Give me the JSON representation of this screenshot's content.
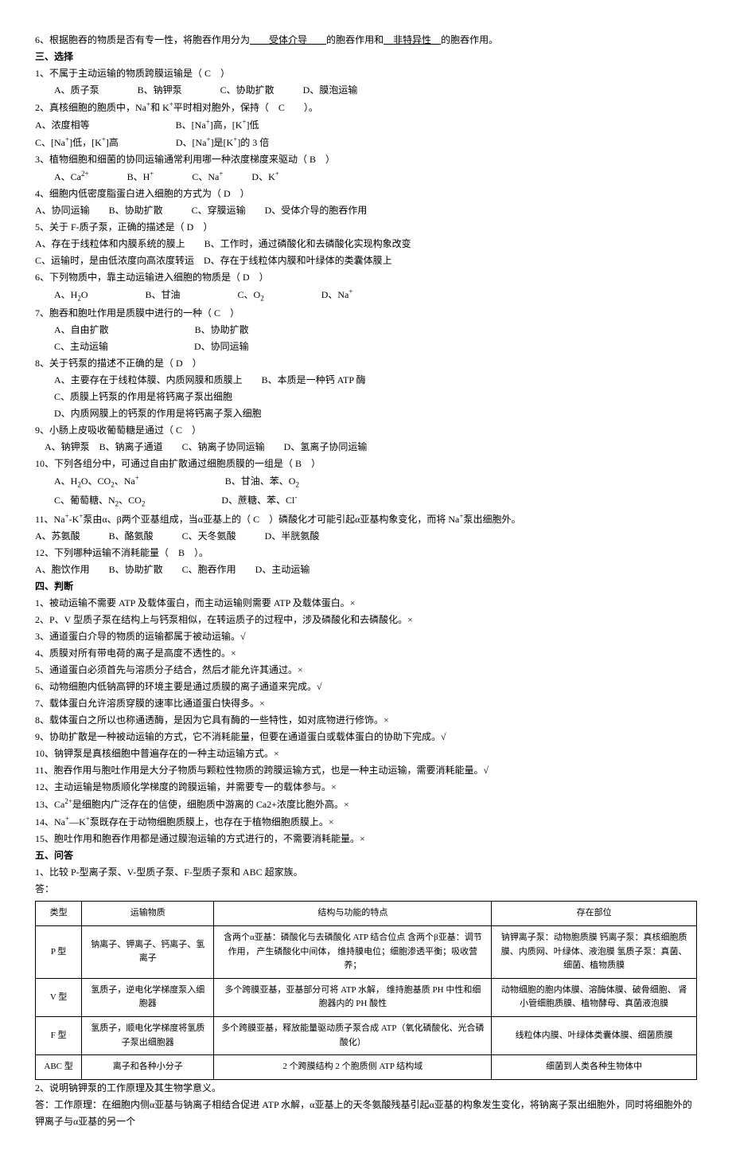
{
  "intro": {
    "q6_pre": "6、根据胞吞的物质是否有专一性，将胞吞作用分为",
    "q6_blank1_pad": "　　",
    "q6_blank1": "受体介导",
    "q6_blank1_pad2": "　　",
    "q6_mid": "的胞吞作用和",
    "q6_blank2_pad": "　",
    "q6_blank2": "非特异性",
    "q6_blank2_pad2": "　",
    "q6_suf": "的胞吞作用。"
  },
  "s3": {
    "head": "三、选择",
    "q1": "1、不属于主动运输的物质跨膜运输是（ C　）",
    "q1o": "　　A、质子泵　　　　B、钠钾泵　　　　C、协助扩散　　　D、膜泡运输",
    "q2a": "2、真核细胞的胞质中，Na",
    "q2b": "和 K",
    "q2c": "平时相对胞外，保持（　C　　）。",
    "q2oA": "A、浓度相等　　　　　　　　　B、[Na",
    "q2oA2": "]高，[K",
    "q2oA3": "]低",
    "q2oC": "C、[Na",
    "q2oC2": "]低，[K",
    "q2oC3": "]高　　　　　　D、[Na",
    "q2oC4": "]是[K",
    "q2oC5": "]的 3 倍",
    "q3": "3、植物细胞和细菌的协同运输通常利用哪一种浓度梯度来驱动（ B　）",
    "q3oA": "　　A、Ca",
    "q3oB": "　　　　B、H",
    "q3oC": "　　　　C、Na",
    "q3oD": "　　　D、K",
    "q4": "4、细胞内低密度脂蛋白进入细胞的方式为（ D　）",
    "q4o": "A、协同运输　　B、协助扩散　　　C、穿膜运输　　D、受体介导的胞吞作用",
    "q5": "5、关于 F-质子泵，正确的描述是（ D　）",
    "q5oA": "A、存在于线粒体和内膜系统的膜上　　B、工作时，通过磷酸化和去磷酸化实现构象改变",
    "q5oC": "C、运输时，是由低浓度向高浓度转运　D、存在于线粒体内膜和叶绿体的类囊体膜上",
    "q6": "6、下列物质中，靠主动运输进入细胞的物质是（ D　）",
    "q6oA": "　　A、H",
    "q6oA2": "O　　　　　　B、甘油　　　　　　C、O",
    "q6oD": "　　　　　　D、Na",
    "q7": "7、胞吞和胞吐作用是质膜中进行的一种（ C　）",
    "q7oA": "　　A、自由扩散　　　　　　　　　B、协助扩散",
    "q7oC": "　　C、主动运输　　　　　　　　　D、协同运输",
    "q8": "8、关于钙泵的描述不正确的是（ D　）",
    "q8oA": "　　A、主要存在于线粒体膜、内质网膜和质膜上　　B、本质是一种钙 ATP 酶",
    "q8oC": "　　C、质膜上钙泵的作用是将钙离子泵出细胞",
    "q8oD": "　　D、内质网膜上的钙泵的作用是将钙离子泵入细胞",
    "q9": "9、小肠上皮吸收葡萄糖是通过（ C　）",
    "q9o": "　A、钠钾泵　B、钠离子通道　　C、钠离子协同运输　　D、氢离子协同运输",
    "q10": "10、下列各组分中，可通过自由扩散通过细胞质膜的一组是（ B　）",
    "q10oA1": "　　A、H",
    "q10oA2": "O、CO",
    "q10oA3": "、Na",
    "q10oB": "　　　　　　　　　B、甘油、苯、O",
    "q10oC1": "　　C、葡萄糖、N",
    "q10oC2": "、CO",
    "q10oD": "　　　　　　　　D、蔗糖、苯、Cl",
    "q11a": "11、Na",
    "q11b": "-K",
    "q11c": "泵由α、β两个亚基组成，当α亚基上的（ C　）磷酸化才可能引起α亚基构象变化，而将 Na",
    "q11d": "泵出细胞外。",
    "q11o": "A、苏氨酸　　　B、酪氨酸　　　C、天冬氨酸　　　D、半胱氨酸",
    "q12": "12、下列哪种运输不消耗能量（　B　）。",
    "q12o": "A、胞饮作用　　B、协助扩散　　C、胞吞作用　　D、主动运输"
  },
  "s4": {
    "head": "四、判断",
    "j1": "1、被动运输不需要 ATP 及载体蛋白，而主动运输则需要 ATP 及载体蛋白。×",
    "j2": "2、P、V 型质子泵在结构上与钙泵相似，在转运质子的过程中，涉及磷酸化和去磷酸化。×",
    "j3": "3、通道蛋白介导的物质的运输都属于被动运输。√",
    "j4": "4、质膜对所有带电荷的离子是高度不透性的。×",
    "j5": "5、通道蛋白必须首先与溶质分子结合，然后才能允许其通过。×",
    "j6": "6、动物细胞内低钠高钾的环境主要是通过质膜的离子通道来完成。√",
    "j7": "7、载体蛋白允许溶质穿膜的速率比通道蛋白快得多。×",
    "j8": "8、载体蛋白之所以也称通透酶，是因为它具有酶的一些特性，如对底物进行修饰。×",
    "j9": "9、协助扩散是一种被动运输的方式，它不消耗能量，但要在通道蛋白或载体蛋白的协助下完成。√",
    "j10": "10、钠钾泵是真核细胞中普遍存在的一种主动运输方式。×",
    "j11": "11、胞吞作用与胞吐作用是大分子物质与颗粒性物质的跨膜运输方式，也是一种主动运输，需要消耗能量。√",
    "j12": "12、主动运输是物质顺化学梯度的跨膜运输，并需要专一的载体参与。×",
    "j13a": "13、Ca",
    "j13b": "是细胞内广泛存在的信使，细胞质中游离的 Ca2+浓度比胞外高。×",
    "j14a": "14、Na",
    "j14b": "—K",
    "j14c": "泵既存在于动物细胞质膜上，也存在于植物细胞质膜上。×",
    "j15": "15、胞吐作用和胞吞作用都是通过膜泡运输的方式进行的，不需要消耗能量。×"
  },
  "s5": {
    "head": "五、问答",
    "q1": "1、比较 P-型离子泵、V-型质子泵、F-型质子泵和 ABC 超家族。",
    "ans_label": "答：",
    "q2": "2、说明钠钾泵的工作原理及其生物学意义。",
    "a2": "答：工作原理：在细胞内侧α亚基与钠离子相结合促进 ATP 水解，α亚基上的天冬氨酸残基引起α亚基的构象发生变化，将钠离子泵出细胞外，同时将细胞外的钾离子与α亚基的另一个"
  },
  "table": {
    "h1": "类型",
    "h2": "运输物质",
    "h3": "结构与功能的特点",
    "h4": "存在部位",
    "r1c1": "P 型",
    "r1c2": "钠离子、钾离子、钙离子、氢离子",
    "r1c3": "含两个α亚基：磷酸化与去磷酸化\nATP 结合位点\n含两个β亚基：调节作用，\n产生磷酸化中间体，\n维持膜电位；细胞渗透平衡；吸收营养；",
    "r1c4": "钠钾离子泵：动物胞质膜\n钙离子泵：真核细胞质膜、内质网、叶绿体、液泡膜\n氢质子泵：真菌、细菌、植物质膜",
    "r2c1": "V 型",
    "r2c2": "氢质子，逆电化学梯度泵入细胞器",
    "r2c3": "多个跨膜亚基，亚基部分可将 ATP 水解，\n维持胞基质 PH 中性和细胞器内的 PH 酸性",
    "r2c4": "动物细胞的胞内体膜、溶酶体膜、破骨细胞、\n肾小管细胞质膜、植物酵母、真菌液泡膜",
    "r3c1": "F 型",
    "r3c2": "氢质子，顺电化学梯度将氢质子泵出细胞器",
    "r3c3": "多个跨膜亚基，释放能量驱动质子泵合成 ATP（氧化磷酸化、光合磷酸化）",
    "r3c4": "线粒体内膜、叶绿体类囊体膜、细菌质膜",
    "r4c1": "ABC 型",
    "r4c2": "离子和各种小分子",
    "r4c3": "2 个跨膜结构 2 个胞质侧 ATP 结构域",
    "r4c4": "细菌到人类各种生物体中"
  }
}
